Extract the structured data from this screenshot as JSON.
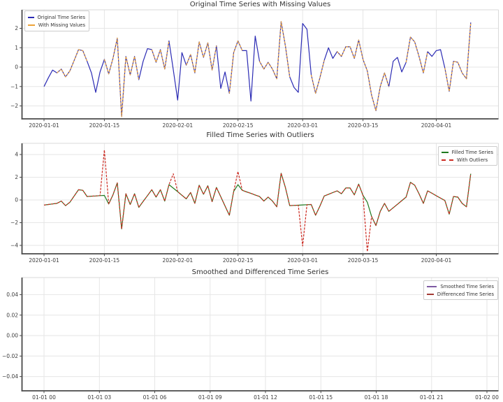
{
  "figure": {
    "background": "#ffffff"
  },
  "chart_data": [
    {
      "type": "line",
      "title": "Original Time Series with Missing Values",
      "xlabel": "",
      "ylabel": "",
      "x_tick_labels": [
        "2020-01-01",
        "2020-01-15",
        "2020-02-01",
        "2020-02-15",
        "2020-03-01",
        "2020-03-15",
        "2020-04-01"
      ],
      "y_tick_labels": [
        "2",
        "1",
        "0",
        "−1",
        "−2"
      ],
      "y_tick_values": [
        2,
        1,
        0,
        -1,
        -2
      ],
      "ylim": [
        -2.67,
        2.95
      ],
      "x_range_days_from": "2020-01-01",
      "grid": true,
      "legend_position": "upper-left",
      "series": [
        {
          "name": "Original Time Series",
          "color": "#2b2bb4",
          "line_style": "solid",
          "values": [
            -1.0,
            -0.55,
            -0.15,
            -0.3,
            -0.1,
            -0.5,
            -0.2,
            0.35,
            0.9,
            0.85,
            0.3,
            -0.3,
            -1.3,
            -0.25,
            0.4,
            -0.35,
            0.45,
            1.5,
            -2.55,
            0.55,
            -0.4,
            0.55,
            -0.65,
            0.3,
            0.95,
            0.9,
            0.25,
            0.9,
            -0.1,
            1.35,
            -0.15,
            -1.7,
            0.75,
            0.1,
            0.65,
            -0.3,
            1.3,
            0.5,
            1.25,
            -0.15,
            1.1,
            -1.1,
            -0.25,
            -1.35,
            0.75,
            1.35,
            0.85,
            0.85,
            -1.75,
            1.6,
            0.3,
            -0.1,
            0.25,
            -0.1,
            -0.6,
            2.35,
            1.1,
            -0.5,
            -1.05,
            -1.3,
            2.25,
            1.95,
            -0.4,
            -1.35,
            -0.55,
            0.35,
            1.0,
            0.45,
            0.8,
            0.55,
            1.05,
            1.05,
            0.45,
            1.4,
            0.4,
            -0.2,
            -1.45,
            -2.25,
            -1.0,
            -0.3,
            -1.0,
            0.3,
            0.5,
            -0.25,
            0.25,
            1.55,
            1.3,
            0.55,
            -0.3,
            0.8,
            0.55,
            0.85,
            0.9,
            -0.05,
            -1.25,
            0.3,
            0.25,
            -0.3,
            -0.6,
            2.3
          ]
        },
        {
          "name": "With Missing Values",
          "color": "#eda338",
          "line_style": "dashed",
          "values": [
            null,
            null,
            null,
            -0.3,
            -0.1,
            -0.5,
            -0.2,
            0.35,
            0.9,
            0.85,
            0.3,
            null,
            null,
            null,
            0.4,
            -0.35,
            0.45,
            1.5,
            -2.55,
            0.55,
            -0.4,
            0.55,
            -0.65,
            null,
            null,
            0.9,
            0.25,
            0.9,
            -0.1,
            1.35,
            null,
            null,
            null,
            0.1,
            0.65,
            -0.3,
            1.3,
            0.5,
            1.25,
            -0.15,
            1.1,
            null,
            null,
            -1.35,
            0.75,
            1.35,
            0.85,
            null,
            null,
            null,
            0.3,
            -0.1,
            0.25,
            -0.1,
            -0.6,
            2.35,
            1.1,
            -0.5,
            null,
            null,
            null,
            null,
            -0.4,
            -1.35,
            -0.55,
            0.35,
            null,
            null,
            0.8,
            0.55,
            1.05,
            1.05,
            0.45,
            1.4,
            0.4,
            -0.2,
            -1.45,
            -2.25,
            -1.0,
            -0.3,
            -1.0,
            null,
            null,
            null,
            0.25,
            1.55,
            1.3,
            0.55,
            -0.3,
            0.8,
            null,
            null,
            null,
            -0.05,
            -1.25,
            0.3,
            0.25,
            -0.3,
            -0.6,
            2.3
          ]
        }
      ]
    },
    {
      "type": "line",
      "title": "Filled Time Series with Outliers",
      "xlabel": "",
      "ylabel": "",
      "x_tick_labels": [
        "2020-01-01",
        "2020-01-15",
        "2020-02-01",
        "2020-02-15",
        "2020-03-01",
        "2020-03-15",
        "2020-04-01"
      ],
      "y_tick_labels": [
        "4",
        "2",
        "0",
        "−2",
        "−4"
      ],
      "y_tick_values": [
        4,
        2,
        0,
        -2,
        -4
      ],
      "ylim": [
        -4.74,
        4.98
      ],
      "x_range_days_from": "2020-01-01",
      "grid": true,
      "legend_position": "upper-right",
      "series": [
        {
          "name": "Filled Time Series",
          "color": "#1f7a1f",
          "line_style": "solid",
          "values": [
            -0.45,
            -0.4,
            -0.35,
            -0.3,
            -0.1,
            -0.5,
            -0.2,
            0.35,
            0.9,
            0.85,
            0.3,
            0.33,
            0.35,
            0.38,
            0.4,
            -0.35,
            0.45,
            1.5,
            -2.55,
            0.55,
            -0.4,
            0.55,
            -0.65,
            -0.13,
            0.38,
            0.9,
            0.25,
            0.9,
            -0.1,
            1.35,
            1.04,
            0.73,
            0.41,
            0.1,
            0.65,
            -0.3,
            1.3,
            0.5,
            1.25,
            -0.15,
            1.1,
            0.28,
            -0.53,
            -1.35,
            0.75,
            1.35,
            0.85,
            0.71,
            0.58,
            0.44,
            0.3,
            -0.1,
            0.25,
            -0.1,
            -0.6,
            2.35,
            1.1,
            -0.5,
            -0.48,
            -0.46,
            -0.44,
            -0.42,
            -0.4,
            -1.35,
            -0.55,
            0.35,
            0.5,
            0.65,
            0.8,
            0.55,
            1.05,
            1.05,
            0.45,
            1.4,
            0.4,
            -0.2,
            -1.45,
            -2.25,
            -1.0,
            -0.3,
            -1.0,
            -0.69,
            -0.38,
            -0.06,
            0.25,
            1.55,
            1.3,
            0.55,
            -0.3,
            0.8,
            0.59,
            0.37,
            0.16,
            -0.05,
            -1.25,
            0.3,
            0.25,
            -0.3,
            -0.6,
            2.3
          ]
        },
        {
          "name": "With Outliers",
          "color": "#cc2b22",
          "line_style": "dashed",
          "values": [
            -0.45,
            -0.4,
            -0.35,
            -0.3,
            -0.1,
            -0.5,
            -0.2,
            0.35,
            0.9,
            0.85,
            0.3,
            0.33,
            0.35,
            0.38,
            4.4,
            -0.35,
            0.45,
            1.5,
            -2.55,
            0.55,
            -0.4,
            0.55,
            -0.65,
            -0.13,
            0.38,
            0.9,
            0.25,
            0.9,
            -0.1,
            1.35,
            2.3,
            0.73,
            0.41,
            0.1,
            0.65,
            -0.3,
            1.3,
            0.5,
            1.25,
            -0.15,
            1.1,
            0.28,
            -0.53,
            -1.35,
            0.75,
            2.5,
            0.85,
            0.71,
            0.58,
            0.44,
            0.3,
            -0.1,
            0.25,
            -0.1,
            -0.6,
            2.35,
            1.1,
            -0.5,
            -0.48,
            -0.46,
            -4.05,
            -0.42,
            -0.4,
            -1.35,
            -0.55,
            0.35,
            0.5,
            0.65,
            0.8,
            0.55,
            1.05,
            1.05,
            0.45,
            1.4,
            0.4,
            -4.55,
            -1.45,
            -2.25,
            -1.0,
            -0.3,
            -1.0,
            -0.69,
            -0.38,
            -0.06,
            0.25,
            1.55,
            1.3,
            0.55,
            -0.3,
            0.8,
            0.59,
            0.37,
            0.16,
            -0.05,
            -1.25,
            0.3,
            0.25,
            -0.3,
            -0.6,
            2.3
          ]
        }
      ]
    },
    {
      "type": "line",
      "title": "Smoothed and Differenced Time Series",
      "xlabel": "",
      "ylabel": "",
      "x_tick_labels": [
        "01-01 00",
        "01-01 03",
        "01-01 06",
        "01-01 09",
        "01-01 12",
        "01-01 15",
        "01-01 18",
        "01-01 21",
        "01-02 00"
      ],
      "y_tick_labels": [
        "0.04",
        "0.02",
        "0.00",
        "−0.02",
        "−0.04"
      ],
      "y_tick_values": [
        0.04,
        0.02,
        0,
        -0.02,
        -0.04
      ],
      "ylim": [
        -0.054,
        0.057
      ],
      "grid": true,
      "legend_position": "upper-right",
      "note": "no data lines visible (empty series)",
      "series": [
        {
          "name": "Smoothed Time Series",
          "color": "#7e5aa2",
          "line_style": "solid",
          "values": []
        },
        {
          "name": "Differenced Time Series",
          "color": "#a33b35",
          "line_style": "dashed",
          "values": []
        }
      ]
    }
  ]
}
